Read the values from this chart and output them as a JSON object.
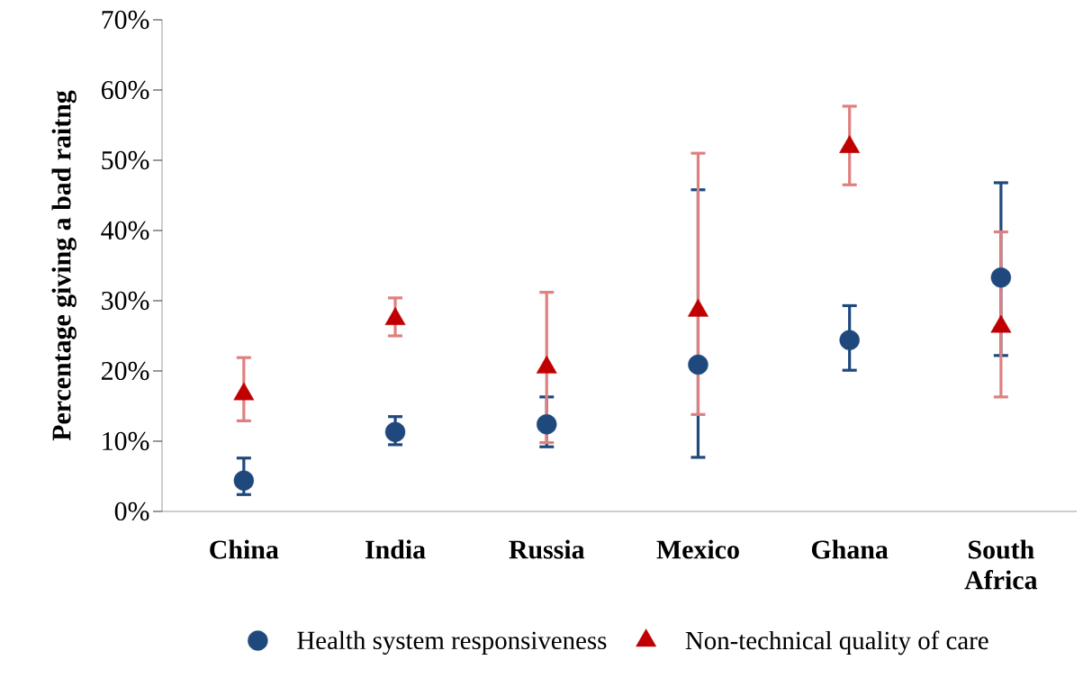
{
  "chart_data": {
    "type": "scatter",
    "ylabel": "Percentage giving a bad raitng",
    "categories": [
      "China",
      "India",
      "Russia",
      "Mexico",
      "Ghana",
      "South Africa"
    ],
    "ylim": [
      0,
      70
    ],
    "yticks": [
      {
        "value": 0,
        "label": "0%"
      },
      {
        "value": 10,
        "label": "10%"
      },
      {
        "value": 20,
        "label": "20%"
      },
      {
        "value": 30,
        "label": "30%"
      },
      {
        "value": 40,
        "label": "40%"
      },
      {
        "value": 50,
        "label": "50%"
      },
      {
        "value": 60,
        "label": "60%"
      },
      {
        "value": 70,
        "label": "70%"
      }
    ],
    "legend": "bottom",
    "grid": false,
    "series": [
      {
        "name": "Health system responsiveness",
        "color": "#1f497d",
        "marker": "circle",
        "values": [
          4.4,
          11.3,
          12.4,
          20.9,
          24.4,
          33.3
        ],
        "errors": [
          [
            2.4,
            7.6
          ],
          [
            9.5,
            13.5
          ],
          [
            9.2,
            16.3
          ],
          [
            7.7,
            45.8
          ],
          [
            20.1,
            29.3
          ],
          [
            22.2,
            46.8
          ]
        ]
      },
      {
        "name": "Non-technical quality of care",
        "color": "#c00000",
        "marker": "triangle",
        "values": [
          16.7,
          27.4,
          20.5,
          28.6,
          51.9,
          26.3
        ],
        "errors": [
          [
            12.9,
            21.9
          ],
          [
            25.0,
            30.4
          ],
          [
            9.8,
            31.2
          ],
          [
            13.8,
            51.0
          ],
          [
            46.5,
            57.7
          ],
          [
            16.3,
            39.8
          ]
        ]
      }
    ]
  }
}
